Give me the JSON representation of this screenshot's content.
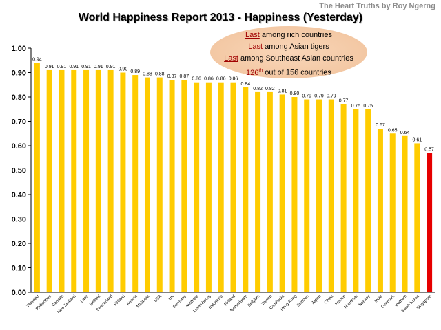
{
  "credit": "The Heart Truths by Roy Ngerng",
  "title": "World Happiness Report 2013 - Happiness (Yesterday)",
  "callout": {
    "lines": [
      {
        "highlight": "Last",
        "rest": " among rich countries"
      },
      {
        "highlight": "Last",
        "rest": " among Asian tigers"
      },
      {
        "highlight": "Last",
        "rest": " among Southeast Asian countries"
      },
      {
        "highlight": "126",
        "sup": "th",
        "rest": " out of 156 countries"
      }
    ]
  },
  "colors": {
    "bar": "#FFCC00",
    "highlight_bar": "#E60000",
    "callout_highlight": "#a00000",
    "axis": "#000000"
  },
  "chart_data": {
    "type": "bar",
    "title": "World Happiness Report 2013 - Happiness (Yesterday)",
    "xlabel": "",
    "ylabel": "",
    "ylim": [
      0,
      1.0
    ],
    "yticks": [
      "0.00",
      "0.10",
      "0.20",
      "0.30",
      "0.40",
      "0.50",
      "0.60",
      "0.70",
      "0.80",
      "0.90",
      "1.00"
    ],
    "grid": false,
    "highlight_category": "Singapore",
    "categories": [
      "Thailand",
      "Philippines",
      "Canada",
      "New Zealand",
      "Laos",
      "Iceland",
      "Switzerland",
      "Finland",
      "Austria",
      "Malaysia",
      "USA",
      "UK",
      "Germany",
      "Australia",
      "Luxembourg",
      "Indonesia",
      "Finland",
      "Netherlands",
      "Belgium",
      "Taiwan",
      "Cambodia",
      "Hong Kong",
      "Sweden",
      "Japan",
      "China",
      "France",
      "Myanmar",
      "Norway",
      "India",
      "Denmark",
      "Vietnam",
      "South Korea",
      "Singapore"
    ],
    "values": [
      0.94,
      0.91,
      0.91,
      0.91,
      0.91,
      0.91,
      0.91,
      0.9,
      0.89,
      0.88,
      0.88,
      0.87,
      0.87,
      0.86,
      0.86,
      0.86,
      0.86,
      0.84,
      0.82,
      0.82,
      0.81,
      0.8,
      0.79,
      0.79,
      0.79,
      0.77,
      0.75,
      0.75,
      0.67,
      0.65,
      0.64,
      0.61,
      0.57
    ],
    "labels": [
      "0.94",
      "0.91",
      "0.91",
      "0.91",
      "0.91",
      "0.91",
      "0.91",
      "0.90",
      "0.89",
      "0.88",
      "0.88",
      "0.87",
      "0.87",
      "0.86",
      "0.86",
      "0.86",
      "0.86",
      "0.84",
      "0.82",
      "0.82",
      "0.81",
      "0.80",
      "0.79",
      "0.79",
      "0.79",
      "0.77",
      "0.75",
      "0.75",
      "0.67",
      "0.65",
      "0.64",
      "0.61",
      "0.57"
    ]
  }
}
